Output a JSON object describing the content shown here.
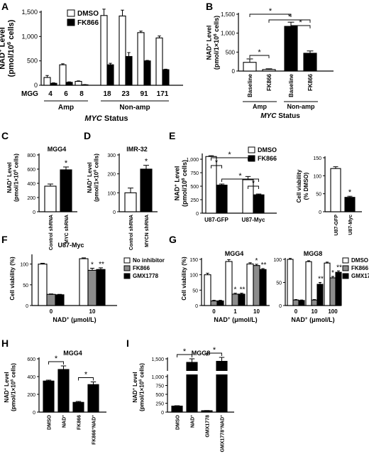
{
  "panel_labels": [
    "A",
    "B",
    "C",
    "D",
    "E",
    "F",
    "G",
    "H",
    "I"
  ],
  "common": {
    "nad_ylabel_1e6": [
      "NAD",
      "+",
      " Level",
      "(pmol/10",
      "6",
      " cells)"
    ],
    "nad_ylabel_1x10_6": [
      "NAD",
      "+",
      " Level",
      "(pmol/1×10",
      "6",
      " cells)"
    ],
    "viability_ylabel": "Cell viability (%)",
    "viability_dmso_ylabel": [
      "Cell viability",
      "(% DMSO)"
    ],
    "nad_conc_xlabel": [
      "NAD",
      "+",
      " (μmol/L)"
    ],
    "myc_status": [
      "MYC",
      " Status"
    ],
    "asterisk": "*",
    "double_asterisk": "**"
  },
  "colors": {
    "white": "#ffffff",
    "black": "#000000",
    "gray": "#8c8c8c"
  },
  "chart_data": [
    {
      "panel": "A",
      "type": "bar",
      "categories": [
        "4",
        "6",
        "8",
        "18",
        "23",
        "91",
        "171"
      ],
      "x_prefix": "MGG",
      "groups": [
        {
          "label": "Amp",
          "count": 3
        },
        {
          "label": "Non-amp",
          "count": 4
        }
      ],
      "series": [
        {
          "name": "DMSO",
          "fill": "white",
          "values": [
            160,
            420,
            80,
            1430,
            1420,
            1080,
            970
          ],
          "errors": [
            40,
            20,
            10,
            130,
            120,
            30,
            40
          ]
        },
        {
          "name": "FK866",
          "fill": "black",
          "values": [
            40,
            60,
            10,
            420,
            590,
            500,
            320
          ],
          "errors": [
            10,
            10,
            5,
            30,
            80,
            10,
            10
          ]
        }
      ],
      "ylim": [
        0,
        1500
      ],
      "yticks": [
        "0",
        "500",
        "1,000",
        "1,500"
      ],
      "ytick_values": [
        0,
        500,
        1000,
        1500
      ],
      "legend_position": "top-right",
      "grid": false
    },
    {
      "panel": "B",
      "type": "bar",
      "categories": [
        "Baseline",
        "FK866",
        "Baseline",
        "FK866"
      ],
      "groups": [
        {
          "label": "Amp",
          "count": 2
        },
        {
          "label": "Non-amp",
          "count": 2
        }
      ],
      "values": [
        230,
        40,
        1180,
        470
      ],
      "errors": [
        90,
        20,
        110,
        60
      ],
      "fills": [
        "white",
        "white",
        "black",
        "black"
      ],
      "ylim": [
        0,
        1500
      ],
      "yticks": [
        "0",
        "500",
        "1,000",
        "1,500"
      ],
      "ytick_values": [
        0,
        500,
        1000,
        1500
      ],
      "significance": [
        [
          0,
          1
        ],
        [
          2,
          3
        ],
        [
          1,
          3
        ],
        [
          0,
          2
        ]
      ]
    },
    {
      "panel": "C",
      "type": "bar",
      "title": "MGG4",
      "categories": [
        "Control shRNA",
        "MYC shRNA"
      ],
      "values": [
        360,
        590
      ],
      "errors": [
        30,
        40
      ],
      "fills": [
        "white",
        "black"
      ],
      "ylim": [
        0,
        800
      ],
      "yticks": [
        "0",
        "200",
        "400",
        "600",
        "800"
      ],
      "ytick_values": [
        0,
        200,
        400,
        600,
        800
      ],
      "star_on": [
        1
      ]
    },
    {
      "panel": "D",
      "type": "bar",
      "title": "IMR-32",
      "categories": [
        "Control shRNA",
        "MYCN shRNA"
      ],
      "values": [
        100,
        225
      ],
      "errors": [
        25,
        20
      ],
      "fills": [
        "white",
        "black"
      ],
      "ylim": [
        0,
        300
      ],
      "yticks": [
        "0",
        "100",
        "200",
        "300"
      ],
      "ytick_values": [
        0,
        100,
        200,
        300
      ],
      "star_on": [
        1
      ]
    },
    {
      "panel": "E1",
      "type": "bar",
      "categories": [
        "U87-GFP",
        "U87-Myc"
      ],
      "series": [
        {
          "name": "DMSO",
          "fill": "white",
          "values": [
            1050,
            620
          ],
          "errors": [
            15,
            60
          ]
        },
        {
          "name": "FK866",
          "fill": "black",
          "values": [
            520,
            340
          ],
          "errors": [
            20,
            15
          ]
        }
      ],
      "ylim": [
        0,
        1000
      ],
      "yticks": [
        "0",
        "250",
        "500",
        "750",
        "1,000"
      ],
      "ytick_values": [
        0,
        250,
        500,
        750,
        1000
      ],
      "legend_position": "top-right"
    },
    {
      "panel": "E2",
      "type": "bar",
      "categories": [
        "U87-GFP",
        "U87-Myc"
      ],
      "values": [
        120,
        40
      ],
      "errors": [
        5,
        3
      ],
      "fills": [
        "white",
        "black"
      ],
      "ylim": [
        0,
        150
      ],
      "yticks": [
        "0",
        "50",
        "100",
        "150"
      ],
      "ytick_values": [
        0,
        50,
        100,
        150
      ],
      "star_on": [
        1
      ]
    },
    {
      "panel": "F",
      "type": "bar",
      "title": "U87-Myc",
      "categories": [
        "0",
        "10"
      ],
      "series": [
        {
          "name": "No inhibitor",
          "fill": "white",
          "values": [
            100,
            113
          ],
          "errors": [
            2,
            2
          ]
        },
        {
          "name": "FK866",
          "fill": "gray",
          "values": [
            27,
            85
          ],
          "errors": [
            1,
            5
          ]
        },
        {
          "name": "GMX1778",
          "fill": "black",
          "values": [
            26,
            87
          ],
          "errors": [
            1,
            4
          ]
        }
      ],
      "stars": [
        null,
        [
          "*",
          "**"
        ]
      ],
      "ylim": [
        0,
        120
      ],
      "yticks": [
        "0",
        "50",
        "100"
      ],
      "ytick_values": [
        0,
        50,
        100
      ],
      "legend_position": "top-right"
    },
    {
      "panel": "G1",
      "type": "bar",
      "title": "MGG4",
      "categories": [
        "0",
        "1",
        "10"
      ],
      "series": [
        {
          "name": "DMSO",
          "fill": "white",
          "values": [
            100,
            143,
            135
          ],
          "errors": [
            5,
            6,
            4
          ]
        },
        {
          "name": "FK866",
          "fill": "gray",
          "values": [
            15,
            37,
            130
          ],
          "errors": [
            2,
            3,
            4
          ]
        },
        {
          "name": "GMX1778",
          "fill": "black",
          "values": [
            15,
            37,
            117
          ],
          "errors": [
            2,
            3,
            3
          ]
        }
      ],
      "stars": [
        null,
        [
          "*",
          "**"
        ],
        [
          "*",
          "**"
        ]
      ],
      "ylim": [
        0,
        150
      ],
      "yticks": [
        "0",
        "50",
        "100",
        "150"
      ],
      "ytick_values": [
        0,
        50,
        100,
        150
      ]
    },
    {
      "panel": "G2",
      "type": "bar",
      "title": "MGG8",
      "categories": [
        "0",
        "10",
        "100"
      ],
      "series": [
        {
          "name": "DMSO",
          "fill": "white",
          "values": [
            100,
            95,
            92
          ],
          "errors": [
            2,
            2,
            2
          ]
        },
        {
          "name": "FK866",
          "fill": "gray",
          "values": [
            12,
            12,
            60
          ],
          "errors": [
            1,
            1,
            3
          ]
        },
        {
          "name": "GMX1778",
          "fill": "black",
          "values": [
            11,
            46,
            72
          ],
          "errors": [
            1,
            4,
            3
          ]
        }
      ],
      "stars": [
        null,
        [
          "",
          "**"
        ],
        [
          "*",
          "**"
        ]
      ],
      "ylim": [
        0,
        100
      ],
      "yticks": [
        "0",
        "50",
        "100"
      ],
      "ytick_values": [
        0,
        50,
        100
      ],
      "legend_position": "top-right"
    },
    {
      "panel": "H",
      "type": "bar",
      "title": "MGG4",
      "categories": [
        "DMSO",
        "NAD+",
        "FK866",
        "FK866+NAD+"
      ],
      "values": [
        350,
        480,
        110,
        310
      ],
      "errors": [
        10,
        40,
        10,
        30
      ],
      "ylim": [
        0,
        600
      ],
      "yticks": [
        "0",
        "200",
        "400",
        "600"
      ],
      "ytick_values": [
        0,
        200,
        400,
        600
      ],
      "significance": [
        [
          0,
          1
        ],
        [
          2,
          3
        ]
      ]
    },
    {
      "panel": "I",
      "type": "bar",
      "title": "MGG8",
      "categories": [
        "DMSO",
        "NAD+",
        "GMX1778",
        "GMX1778+NAD+"
      ],
      "values": [
        170,
        1400,
        40,
        1430
      ],
      "errors": [
        10,
        100,
        5,
        110
      ],
      "ylim": [
        0,
        1500
      ],
      "yticks": [
        "0",
        "250",
        "500",
        "750",
        "1,000",
        "1,500"
      ],
      "ytick_values": [
        0,
        250,
        500,
        750,
        1000,
        1500
      ],
      "break_at": [
        1000,
        1250
      ],
      "significance": [
        [
          0,
          1
        ],
        [
          2,
          3
        ]
      ]
    }
  ]
}
